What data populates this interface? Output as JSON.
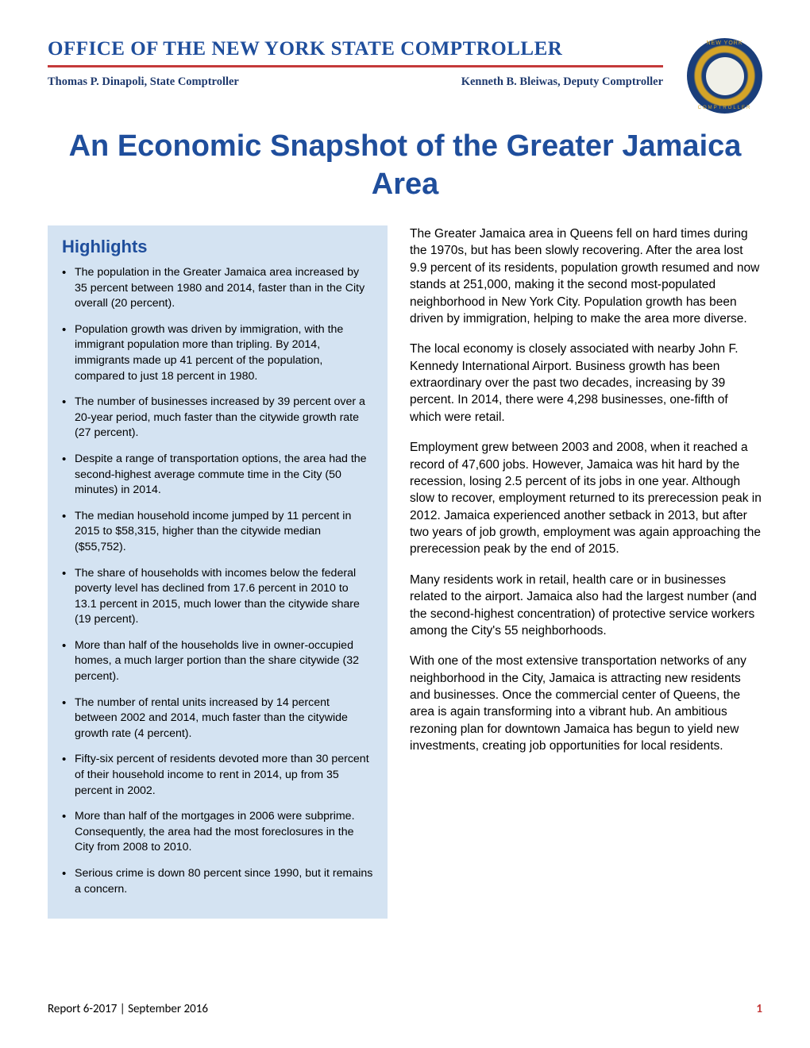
{
  "header": {
    "office_title": "OFFICE OF THE NEW YORK STATE COMPTROLLER",
    "comptroller": "Thomas P. Dinapoli, State Comptroller",
    "deputy": "Kenneth B. Bleiwas, Deputy Comptroller",
    "seal_text_top": "NEW YORK",
    "seal_text_bottom": "COMPTROLLER"
  },
  "main_title": "An Economic Snapshot of the Greater Jamaica Area",
  "highlights": {
    "title": "Highlights",
    "items": [
      "The population in the Greater Jamaica area increased by 35 percent between 1980 and 2014, faster than in the City overall (20 percent).",
      "Population growth was driven by immigration, with the immigrant population more than tripling. By 2014, immigrants made up 41 percent of the population, compared to just 18 percent in 1980.",
      "The number of businesses increased by 39 percent over a 20-year period, much faster than the citywide growth rate (27 percent).",
      "Despite a range of transportation options, the area had the second-highest average commute time in the City (50 minutes) in 2014.",
      "The median household income jumped by 11 percent in 2015 to $58,315, higher than the citywide median ($55,752).",
      "The share of households with incomes below the federal poverty level has declined from 17.6 percent in 2010 to 13.1 percent in 2015, much lower than the citywide share (19 percent).",
      "More than half of the households live in owner-occupied homes, a much larger portion than the share citywide (32 percent).",
      "The number of rental units increased by 14 percent between 2002 and 2014, much faster than the citywide growth rate (4 percent).",
      "Fifty-six percent of residents devoted more than 30 percent of their household income to rent in 2014, up from 35 percent in 2002.",
      "More than half of the mortgages in 2006 were subprime. Consequently, the area had the most foreclosures in the City from 2008 to 2010.",
      "Serious crime is down 80 percent since 1990, but it remains a concern."
    ]
  },
  "body": {
    "paragraphs": [
      "The Greater Jamaica area in Queens fell on hard times during the 1970s, but has been slowly recovering. After the area lost 9.9 percent of its residents, population growth resumed and now stands at 251,000, making it the second most-populated neighborhood in New York City. Population growth has been driven by immigration, helping to make the area more diverse.",
      "The local economy is closely associated with nearby John F. Kennedy International Airport. Business growth has been extraordinary over the past two decades, increasing by 39 percent. In 2014, there were 4,298 businesses, one-fifth of which were retail.",
      "Employment grew between 2003 and 2008, when it reached a record of 47,600 jobs. However, Jamaica was hit hard by the recession, losing 2.5 percent of its jobs in one year. Although slow to recover, employment returned to its prerecession peak in 2012. Jamaica experienced another setback in 2013, but after two years of job growth, employment was again approaching the prerecession peak by the end of 2015.",
      "Many residents work in retail, health care or in businesses related to the airport. Jamaica also had the largest number (and the second-highest concentration) of protective service workers among the City's 55 neighborhoods.",
      "With one of the most extensive transportation networks of any neighborhood in the City, Jamaica is attracting new residents and businesses. Once the commercial center of Queens, the area is again transforming into a vibrant hub. An ambitious rezoning plan for downtown Jamaica has begun to yield new investments, creating job opportunities for local residents."
    ]
  },
  "footer": {
    "left": "Report 6-2017   |   September 2016",
    "page": "1"
  },
  "colors": {
    "primary_blue": "#1f4e9c",
    "divider_red": "#c43a3a",
    "highlight_bg": "#d4e3f2",
    "seal_blue": "#1a3e7a",
    "seal_gold": "#d4a428"
  }
}
